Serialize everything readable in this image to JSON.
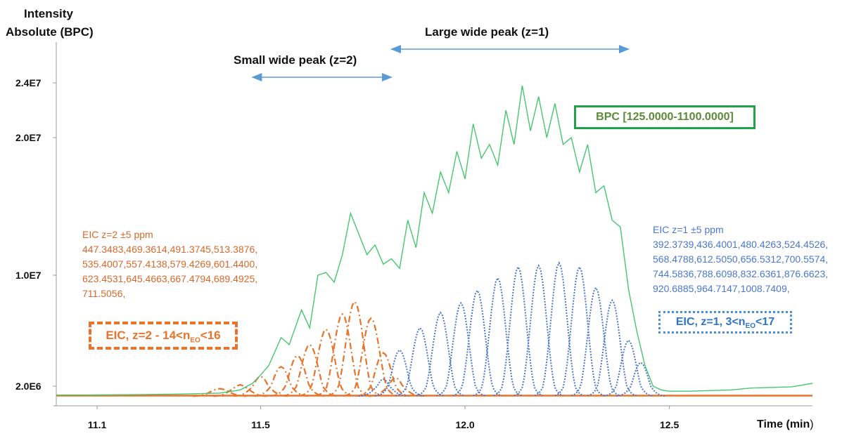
{
  "chart_data": {
    "type": "line",
    "y_axis_title_line1": "Intensity",
    "y_axis_title_line2": "Absolute (BPC)",
    "xlabel": "Time (min",
    "xlabel_paren": ")",
    "xlim": [
      11.0,
      12.85
    ],
    "ylim": [
      0,
      27500000.0
    ],
    "x_ticks": [
      11.1,
      11.5,
      12.0,
      12.5
    ],
    "x_tick_labels": [
      "11.1",
      "11.5",
      "12.0",
      "12.5"
    ],
    "y_ticks": [
      2000000,
      10000000,
      20000000,
      24000000
    ],
    "y_tick_labels": [
      "2.0E6",
      "1.0E7",
      "2.0E7",
      "2.4E7"
    ],
    "annotations": {
      "large_peak": "Large wide peak (z=1)",
      "large_peak_range": [
        11.82,
        12.4
      ],
      "small_peak": "Small wide peak (z=2)",
      "small_peak_range": [
        11.48,
        11.82
      ]
    },
    "series": [
      {
        "name": "BPC [125.0000-1100.0000]",
        "color": "#45c76e",
        "style": "solid",
        "x": [
          11.0,
          11.1,
          11.2,
          11.3,
          11.4,
          11.45,
          11.48,
          11.5,
          11.52,
          11.55,
          11.57,
          11.6,
          11.62,
          11.64,
          11.66,
          11.68,
          11.7,
          11.72,
          11.74,
          11.76,
          11.78,
          11.8,
          11.82,
          11.84,
          11.86,
          11.88,
          11.9,
          11.92,
          11.94,
          11.96,
          11.98,
          12.0,
          12.02,
          12.04,
          12.06,
          12.08,
          12.1,
          12.12,
          12.14,
          12.16,
          12.18,
          12.2,
          12.22,
          12.24,
          12.26,
          12.28,
          12.3,
          12.32,
          12.34,
          12.36,
          12.38,
          12.4,
          12.42,
          12.44,
          12.46,
          12.48,
          12.5,
          12.55,
          12.6,
          12.65,
          12.7,
          12.75,
          12.8,
          12.85
        ],
        "y": [
          600000,
          610000,
          650000,
          750000,
          900000,
          1400000,
          2200000,
          2800000,
          3500000,
          5500000,
          5000000,
          7500000,
          6200000,
          10000000,
          10200000,
          9500000,
          11500000,
          14500000,
          13000000,
          11500000,
          12200000,
          10800000,
          11200000,
          10500000,
          14000000,
          12000000,
          16000000,
          14500000,
          17500000,
          16000000,
          19000000,
          17000000,
          21000000,
          18500000,
          19500000,
          18000000,
          22000000,
          19500000,
          23800000,
          20500000,
          23000000,
          20000000,
          22500000,
          19500000,
          20000000,
          17500000,
          19500000,
          16000000,
          16500000,
          14000000,
          13500000,
          9000000,
          6000000,
          3500000,
          2000000,
          1400000,
          1200000,
          1200000,
          1300000,
          1400000,
          1700000,
          1800000,
          1900000,
          2200000
        ]
      }
    ],
    "eic_z2": {
      "title": "EIC z=2 ±5 ppm",
      "masses": [
        "447.3483,469.3614,491.3745,513.3876,",
        "535.4007,557.4138,579.4269,601.4400,",
        "623.4531,645.4663,667.4794,689.4925,",
        "711.5056,"
      ],
      "legend_prefix": "EIC, z=2 - 14<n",
      "legend_sub": "EO",
      "legend_suffix": "<16",
      "color": "#e8742c",
      "peaks": [
        {
          "x": 11.4,
          "y": 1200000
        },
        {
          "x": 11.45,
          "y": 1700000
        },
        {
          "x": 11.5,
          "y": 2300000
        },
        {
          "x": 11.55,
          "y": 3000000
        },
        {
          "x": 11.59,
          "y": 3800000
        },
        {
          "x": 11.62,
          "y": 4600000
        },
        {
          "x": 11.66,
          "y": 5700000
        },
        {
          "x": 11.7,
          "y": 6800000
        },
        {
          "x": 11.73,
          "y": 7700000
        },
        {
          "x": 11.77,
          "y": 6500000
        },
        {
          "x": 11.8,
          "y": 4000000
        },
        {
          "x": 11.83,
          "y": 2200000
        }
      ]
    },
    "eic_z1": {
      "title": "EIC z=1 ±5 ppm",
      "masses": [
        "392.3739,436.4001,480.4263,524.4526,",
        "568.4788,612.5050,656.5312,700.5574,",
        "744.5836,788.6098,832.6361,876.6623,",
        "920.6885,964.7147,1008.7409,"
      ],
      "legend_prefix": "EIC, z=1, 3<n",
      "legend_sub": "EO",
      "legend_suffix": "<17",
      "color": "#4a78d0",
      "peaks": [
        {
          "x": 11.8,
          "y": 2100000
        },
        {
          "x": 11.84,
          "y": 4200000
        },
        {
          "x": 11.89,
          "y": 5800000
        },
        {
          "x": 11.94,
          "y": 6900000
        },
        {
          "x": 11.99,
          "y": 7600000
        },
        {
          "x": 12.03,
          "y": 8500000
        },
        {
          "x": 12.08,
          "y": 9400000
        },
        {
          "x": 12.13,
          "y": 10200000
        },
        {
          "x": 12.18,
          "y": 10300000
        },
        {
          "x": 12.23,
          "y": 10500000
        },
        {
          "x": 12.28,
          "y": 10200000
        },
        {
          "x": 12.32,
          "y": 8700000
        },
        {
          "x": 12.36,
          "y": 7800000
        },
        {
          "x": 12.4,
          "y": 4900000
        },
        {
          "x": 12.43,
          "y": 3300000
        }
      ]
    }
  },
  "colors": {
    "axis": "#999999",
    "bpc": "#45c76e",
    "z2": "#e8742c",
    "z1": "#4a78d0",
    "arrow": "#5b9bd5"
  }
}
